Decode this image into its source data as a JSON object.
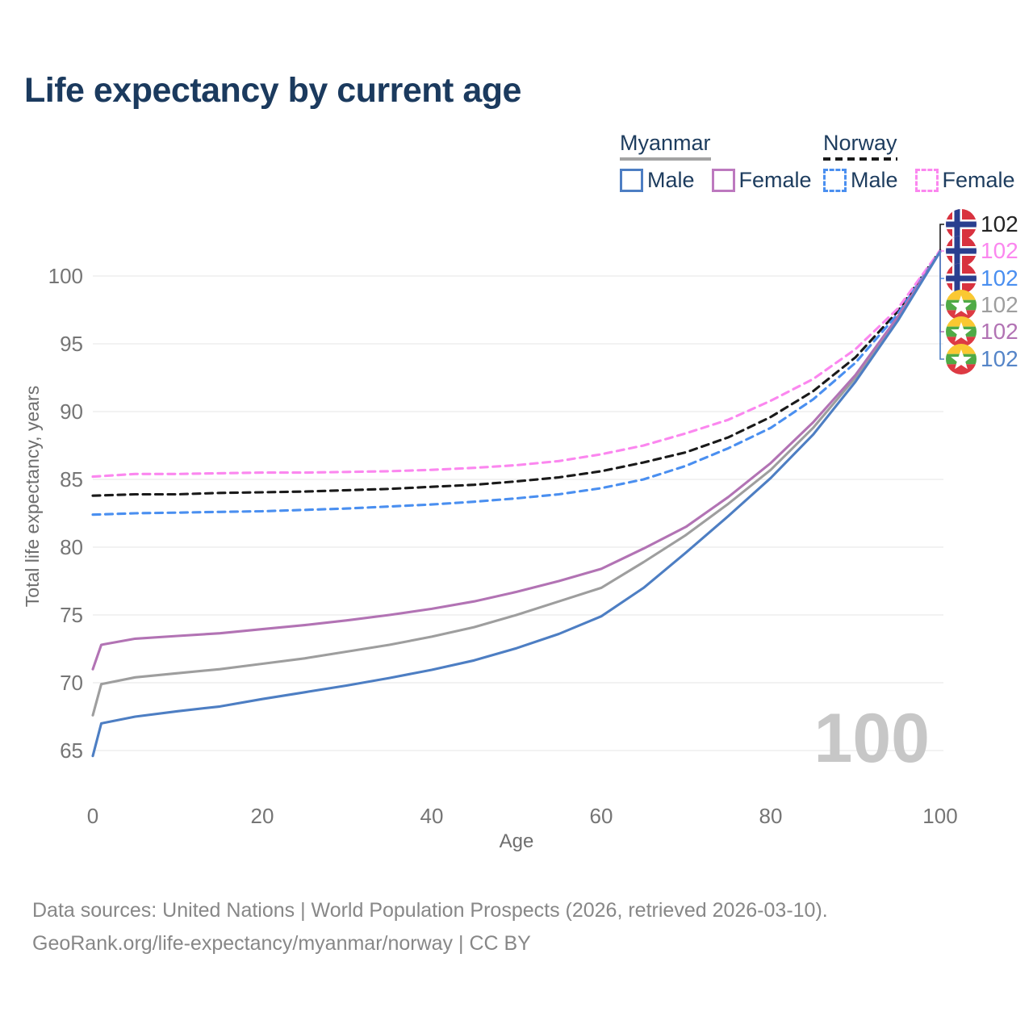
{
  "title": "Life expectancy by current age",
  "legend": {
    "groups": [
      {
        "country": "Myanmar",
        "line_style": "solid",
        "line_color": "#a3a3a3",
        "items": [
          {
            "label": "Male",
            "color": "#4d7ec3",
            "border_style": "solid"
          },
          {
            "label": "Female",
            "color": "#bd79bf",
            "border_style": "solid"
          }
        ]
      },
      {
        "country": "Norway",
        "line_style": "dashed",
        "line_color": "#1a1a1a",
        "items": [
          {
            "label": "Male",
            "color": "#4a8ff0",
            "border_style": "dashed"
          },
          {
            "label": "Female",
            "color": "#fb87ef",
            "border_style": "dashed"
          }
        ]
      }
    ]
  },
  "chart_data": {
    "type": "line",
    "title": "Life expectancy by current age",
    "xlabel": "Age",
    "ylabel": "Total life expectancy, years",
    "xlim": [
      0,
      100
    ],
    "ylim": [
      63,
      103
    ],
    "x_ticks": [
      0,
      20,
      40,
      60,
      80,
      100
    ],
    "y_ticks": [
      65,
      70,
      75,
      80,
      85,
      90,
      95,
      100
    ],
    "grid": "horizontal",
    "age_watermark": "100",
    "series": [
      {
        "name": "Norway all",
        "country": "Norway",
        "sex": "Both",
        "color": "#1a1a1a",
        "dash": true,
        "flag": "norway",
        "end_label": "102",
        "label_color": "#232323",
        "points": [
          [
            0,
            83.8
          ],
          [
            5,
            83.9
          ],
          [
            10,
            83.9
          ],
          [
            15,
            84.0
          ],
          [
            20,
            84.05
          ],
          [
            25,
            84.1
          ],
          [
            30,
            84.2
          ],
          [
            35,
            84.3
          ],
          [
            40,
            84.45
          ],
          [
            45,
            84.6
          ],
          [
            50,
            84.85
          ],
          [
            55,
            85.15
          ],
          [
            60,
            85.6
          ],
          [
            65,
            86.25
          ],
          [
            70,
            87.0
          ],
          [
            75,
            88.1
          ],
          [
            80,
            89.6
          ],
          [
            85,
            91.5
          ],
          [
            90,
            94.0
          ],
          [
            95,
            97.4
          ],
          [
            100,
            101.9
          ]
        ]
      },
      {
        "name": "Norway female",
        "country": "Norway",
        "sex": "Female",
        "color": "#fb87ef",
        "dash": true,
        "flag": "norway",
        "end_label": "102",
        "label_color": "#fb87ef",
        "points": [
          [
            0,
            85.2
          ],
          [
            5,
            85.4
          ],
          [
            10,
            85.4
          ],
          [
            15,
            85.45
          ],
          [
            20,
            85.5
          ],
          [
            25,
            85.5
          ],
          [
            30,
            85.55
          ],
          [
            35,
            85.6
          ],
          [
            40,
            85.7
          ],
          [
            45,
            85.85
          ],
          [
            50,
            86.05
          ],
          [
            55,
            86.35
          ],
          [
            60,
            86.85
          ],
          [
            65,
            87.5
          ],
          [
            70,
            88.4
          ],
          [
            75,
            89.4
          ],
          [
            80,
            90.8
          ],
          [
            85,
            92.4
          ],
          [
            90,
            94.6
          ],
          [
            95,
            97.6
          ],
          [
            100,
            101.9
          ]
        ]
      },
      {
        "name": "Norway male",
        "country": "Norway",
        "sex": "Male",
        "color": "#4a8ff0",
        "dash": true,
        "flag": "norway",
        "end_label": "102",
        "label_color": "#4a8ff0",
        "points": [
          [
            0,
            82.4
          ],
          [
            5,
            82.5
          ],
          [
            10,
            82.55
          ],
          [
            15,
            82.6
          ],
          [
            20,
            82.65
          ],
          [
            25,
            82.75
          ],
          [
            30,
            82.85
          ],
          [
            35,
            83.0
          ],
          [
            40,
            83.15
          ],
          [
            45,
            83.35
          ],
          [
            50,
            83.6
          ],
          [
            55,
            83.9
          ],
          [
            60,
            84.35
          ],
          [
            65,
            85.0
          ],
          [
            70,
            86.0
          ],
          [
            75,
            87.3
          ],
          [
            80,
            88.8
          ],
          [
            85,
            90.9
          ],
          [
            90,
            93.6
          ],
          [
            95,
            97.2
          ],
          [
            100,
            101.8
          ]
        ]
      },
      {
        "name": "Myanmar all",
        "country": "Myanmar",
        "sex": "Both",
        "color": "#9e9e9e",
        "dash": false,
        "flag": "myanmar",
        "end_label": "102",
        "label_color": "#9e9e9e",
        "points": [
          [
            0,
            67.6
          ],
          [
            1,
            69.9
          ],
          [
            5,
            70.4
          ],
          [
            10,
            70.7
          ],
          [
            15,
            71.0
          ],
          [
            20,
            71.4
          ],
          [
            25,
            71.8
          ],
          [
            30,
            72.3
          ],
          [
            35,
            72.8
          ],
          [
            40,
            73.4
          ],
          [
            45,
            74.1
          ],
          [
            50,
            75.0
          ],
          [
            55,
            76.0
          ],
          [
            60,
            77.0
          ],
          [
            65,
            78.9
          ],
          [
            70,
            80.9
          ],
          [
            75,
            83.2
          ],
          [
            80,
            85.7
          ],
          [
            85,
            88.8
          ],
          [
            90,
            92.5
          ],
          [
            95,
            96.9
          ],
          [
            100,
            101.8
          ]
        ]
      },
      {
        "name": "Myanmar female",
        "country": "Myanmar",
        "sex": "Female",
        "color": "#b273b4",
        "dash": false,
        "flag": "myanmar",
        "end_label": "102",
        "label_color": "#b273b4",
        "points": [
          [
            0,
            71.0
          ],
          [
            1,
            72.8
          ],
          [
            5,
            73.25
          ],
          [
            10,
            73.45
          ],
          [
            15,
            73.65
          ],
          [
            20,
            73.95
          ],
          [
            25,
            74.25
          ],
          [
            30,
            74.6
          ],
          [
            35,
            75.0
          ],
          [
            40,
            75.45
          ],
          [
            45,
            76.0
          ],
          [
            50,
            76.7
          ],
          [
            55,
            77.5
          ],
          [
            60,
            78.4
          ],
          [
            65,
            79.9
          ],
          [
            70,
            81.5
          ],
          [
            75,
            83.7
          ],
          [
            80,
            86.2
          ],
          [
            85,
            89.2
          ],
          [
            90,
            92.7
          ],
          [
            95,
            97.0
          ],
          [
            100,
            101.8
          ]
        ]
      },
      {
        "name": "Myanmar male",
        "country": "Myanmar",
        "sex": "Male",
        "color": "#4d7ec3",
        "dash": false,
        "flag": "myanmar",
        "end_label": "102",
        "label_color": "#5585c8",
        "points": [
          [
            0,
            64.6
          ],
          [
            1,
            67.0
          ],
          [
            5,
            67.5
          ],
          [
            10,
            67.9
          ],
          [
            15,
            68.25
          ],
          [
            20,
            68.8
          ],
          [
            25,
            69.3
          ],
          [
            30,
            69.8
          ],
          [
            35,
            70.35
          ],
          [
            40,
            70.95
          ],
          [
            45,
            71.65
          ],
          [
            50,
            72.55
          ],
          [
            55,
            73.6
          ],
          [
            60,
            74.9
          ],
          [
            65,
            77.0
          ],
          [
            70,
            79.6
          ],
          [
            75,
            82.3
          ],
          [
            80,
            85.1
          ],
          [
            85,
            88.3
          ],
          [
            90,
            92.2
          ],
          [
            95,
            96.7
          ],
          [
            100,
            101.8
          ]
        ]
      }
    ]
  },
  "footer": {
    "line1": "Data sources: United Nations | World Population Prospects (2026, retrieved 2026-03-10).",
    "line2": "GeoRank.org/life-expectancy/myanmar/norway | CC BY"
  }
}
